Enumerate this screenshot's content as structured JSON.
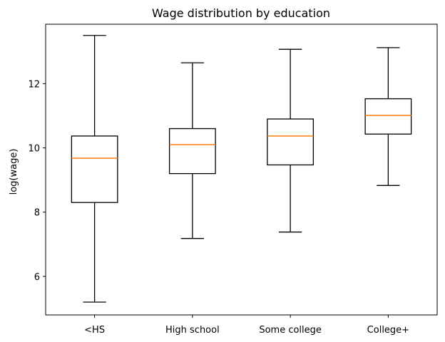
{
  "chart_data": {
    "type": "box",
    "title": "Wage distribution by education",
    "xlabel": "",
    "ylabel": "log(wage)",
    "ylim": [
      4.8,
      13.85
    ],
    "yticks": [
      6,
      8,
      10,
      12
    ],
    "grid": false,
    "categories": [
      "<HS",
      "High school",
      "Some college",
      "College+"
    ],
    "boxes": [
      {
        "whisker_low": 5.2,
        "q1": 8.3,
        "median": 9.68,
        "q3": 10.37,
        "whisker_high": 13.5
      },
      {
        "whisker_low": 7.18,
        "q1": 9.2,
        "median": 10.1,
        "q3": 10.6,
        "whisker_high": 12.65
      },
      {
        "whisker_low": 7.38,
        "q1": 9.47,
        "median": 10.37,
        "q3": 10.9,
        "whisker_high": 13.07
      },
      {
        "whisker_low": 8.83,
        "q1": 10.43,
        "median": 11.01,
        "q3": 11.53,
        "whisker_high": 13.12
      }
    ],
    "colors": {
      "box": "#000000",
      "median": "#ff7f0e"
    }
  }
}
